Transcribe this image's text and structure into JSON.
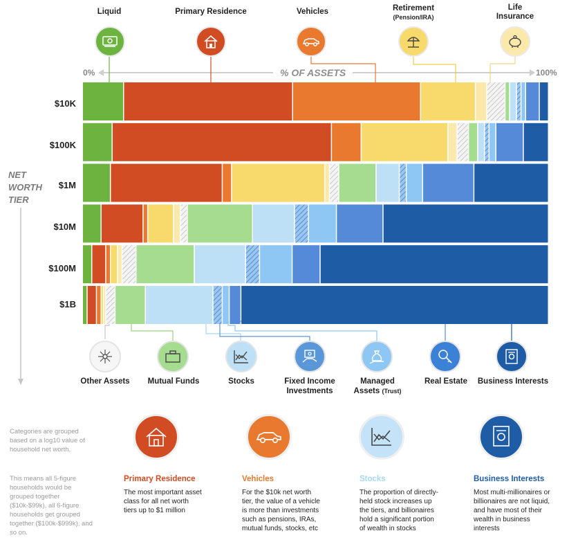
{
  "chart_data": {
    "type": "stacked-bar-100",
    "axis_label": "% OF ASSETS",
    "axis_min_label": "0%",
    "axis_max_label": "100%",
    "tier_axis_title": [
      "NET",
      "WORTH",
      "TIER"
    ],
    "categories": [
      "$10K",
      "$100K",
      "$1M",
      "$10M",
      "$100M",
      "$1B"
    ],
    "series": [
      {
        "name": "Liquid",
        "color": "#6db33f",
        "values": [
          9,
          6.5,
          6,
          4,
          2,
          1
        ]
      },
      {
        "name": "Primary Residence",
        "color": "#d14b23",
        "values": [
          37,
          48,
          24,
          9,
          3,
          2
        ]
      },
      {
        "name": "Vehicles",
        "color": "#e8792e",
        "values": [
          28,
          6.5,
          2,
          1,
          1,
          1
        ]
      },
      {
        "name": "Retirement (Pension/IRA)",
        "color": "#f8d96b",
        "values": [
          12,
          19,
          20,
          5.5,
          1.5,
          0.5
        ]
      },
      {
        "name": "Life Insurance",
        "color": "#fbe9ab",
        "values": [
          2.5,
          2,
          1,
          1.5,
          1,
          0.5
        ]
      },
      {
        "name": "Other Assets",
        "color": "hatch-gray",
        "values": [
          4,
          2.5,
          2,
          1.5,
          3,
          2
        ]
      },
      {
        "name": "Mutual Funds",
        "color": "#a6dc8f",
        "values": [
          1,
          2,
          8,
          14,
          12.5,
          6.5
        ]
      },
      {
        "name": "Stocks",
        "color": "#bee0f7",
        "values": [
          1.5,
          1.5,
          5,
          9,
          11,
          14.5
        ]
      },
      {
        "name": "Fixed Income Investments",
        "color": "hatch-blue",
        "values": [
          1,
          1,
          1.5,
          3,
          3,
          2
        ]
      },
      {
        "name": "Managed Assets (Trust)",
        "color": "#8ec7f3",
        "values": [
          1,
          1.5,
          3.5,
          6,
          7,
          1.5
        ]
      },
      {
        "name": "Real Estate",
        "color": "#558ad8",
        "values": [
          3,
          6,
          11,
          10,
          6,
          2.5
        ]
      },
      {
        "name": "Business Interests",
        "color": "#1f5ca6",
        "values": [
          2,
          5.5,
          16,
          35.5,
          49,
          66
        ]
      }
    ]
  },
  "top_labels": {
    "liquid": "Liquid",
    "primary": "Primary Residence",
    "vehicles": "Vehicles",
    "retirement": "Retirement",
    "retirement_sub": "(Pension/IRA)",
    "life1": "Life",
    "life2": "Insurance"
  },
  "bottom_labels": {
    "other": "Other Assets",
    "mutual": "Mutual Funds",
    "stocks": "Stocks",
    "fixed1": "Fixed Income",
    "fixed2": "Investments",
    "managed1": "Managed",
    "managed2": "Assets",
    "managed3": "(Trust)",
    "realestate": "Real Estate",
    "business": "Business Interests"
  },
  "notes": {
    "note1": "Categories are grouped based on a log10 value of household net worth.",
    "note2": "This means all 5-figure households would be grouped together ($10k-$99k), all 6-figure households get grouped together ($100k-$999k), and so on."
  },
  "callouts": [
    {
      "title": "Primary Residence",
      "color": "#d14b23",
      "text": "The most important asset class for all net worth tiers up to $1 million"
    },
    {
      "title": "Vehicles",
      "color": "#e8792e",
      "text": "For the $10k net worth tier, the value of a vehicle is more than investments such as pensions, IRAs, mutual funds, stocks, etc"
    },
    {
      "title": "Stocks",
      "color": "#a7d6f5",
      "text": "The proportion of directly-held stock increases up the tiers, and billionaires hold a significant portion of wealth in stocks"
    },
    {
      "title": "Business Interests",
      "color": "#1f5ca6",
      "text": "Most multi-millionaires or billionaires are not liquid, and have most of their wealth in business interests"
    }
  ],
  "colors": {
    "liquid": "#6db33f",
    "primary": "#d14b23",
    "vehicles": "#e8792e",
    "retirement": "#f8d96b",
    "life": "#fbe9ab",
    "other": "#eeeeee",
    "mutual": "#a6dc8f",
    "stocks": "#bee0f7",
    "fixed": "#7fb3e6",
    "managed": "#8ec7f3",
    "realestate": "#3b82d6",
    "business": "#1f5ca6"
  },
  "icons": {
    "liquid": "cash-icon",
    "primary": "house-icon",
    "vehicles": "car-icon",
    "retirement": "beach-umbrella-icon",
    "life": "piggy-bank-icon",
    "other": "network-icon",
    "mutual": "briefcase-icon",
    "stocks": "stock-chart-icon",
    "fixed": "hand-money-icon",
    "managed": "money-bag-icon",
    "realestate": "house-key-icon",
    "business": "certificate-icon"
  }
}
